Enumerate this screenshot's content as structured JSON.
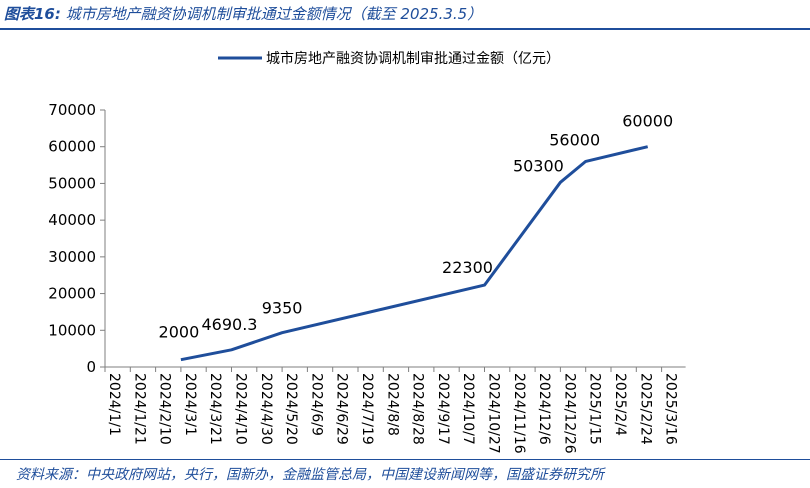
{
  "header": {
    "title_prefix": "图表16:",
    "title_text": "城市房地产融资协调机制审批通过金额情况（截至 2025.3.5）"
  },
  "footer": {
    "source": "资料来源：中央政府网站，央行，国新办，金融监管总局，中国建设新闻网等，国盛证券研究所"
  },
  "chart_data": {
    "type": "line",
    "title": "",
    "xlabel": "",
    "ylabel": "",
    "ylim": [
      0,
      70000
    ],
    "yticks": [
      "0",
      "10000",
      "20000",
      "30000",
      "40000",
      "50000",
      "60000",
      "70000"
    ],
    "categories": [
      "2024/1/1",
      "2024/1/21",
      "2024/2/10",
      "2024/3/1",
      "2024/3/21",
      "2024/4/10",
      "2024/4/30",
      "2024/5/20",
      "2024/6/9",
      "2024/6/29",
      "2024/7/19",
      "2024/8/8",
      "2024/8/28",
      "2024/9/17",
      "2024/10/7",
      "2024/10/27",
      "2024/11/16",
      "2024/12/6",
      "2024/12/26",
      "2025/1/15",
      "2025/2/4",
      "2025/2/24",
      "2025/3/16"
    ],
    "series": [
      {
        "name": "城市房地产融资协调机制审批通过金额（亿元）",
        "color": "#1f4e9b",
        "points": [
          {
            "x": "2024/3/1",
            "y": 2000,
            "label": "2000"
          },
          {
            "x": "2024/4/10",
            "y": 4690.3,
            "label": "4690.3"
          },
          {
            "x": "2024/5/20",
            "y": 9350,
            "label": "9350"
          },
          {
            "x": "2024/10/27",
            "y": 22300,
            "label": "22300"
          },
          {
            "x": "2024/12/26",
            "y": 50300,
            "label": "50300"
          },
          {
            "x": "2025/1/15",
            "y": 56000,
            "label": "56000"
          },
          {
            "x": "2025/3/5",
            "y": 60000,
            "label": "60000"
          }
        ]
      }
    ],
    "grid": false,
    "legend": "top-center"
  }
}
